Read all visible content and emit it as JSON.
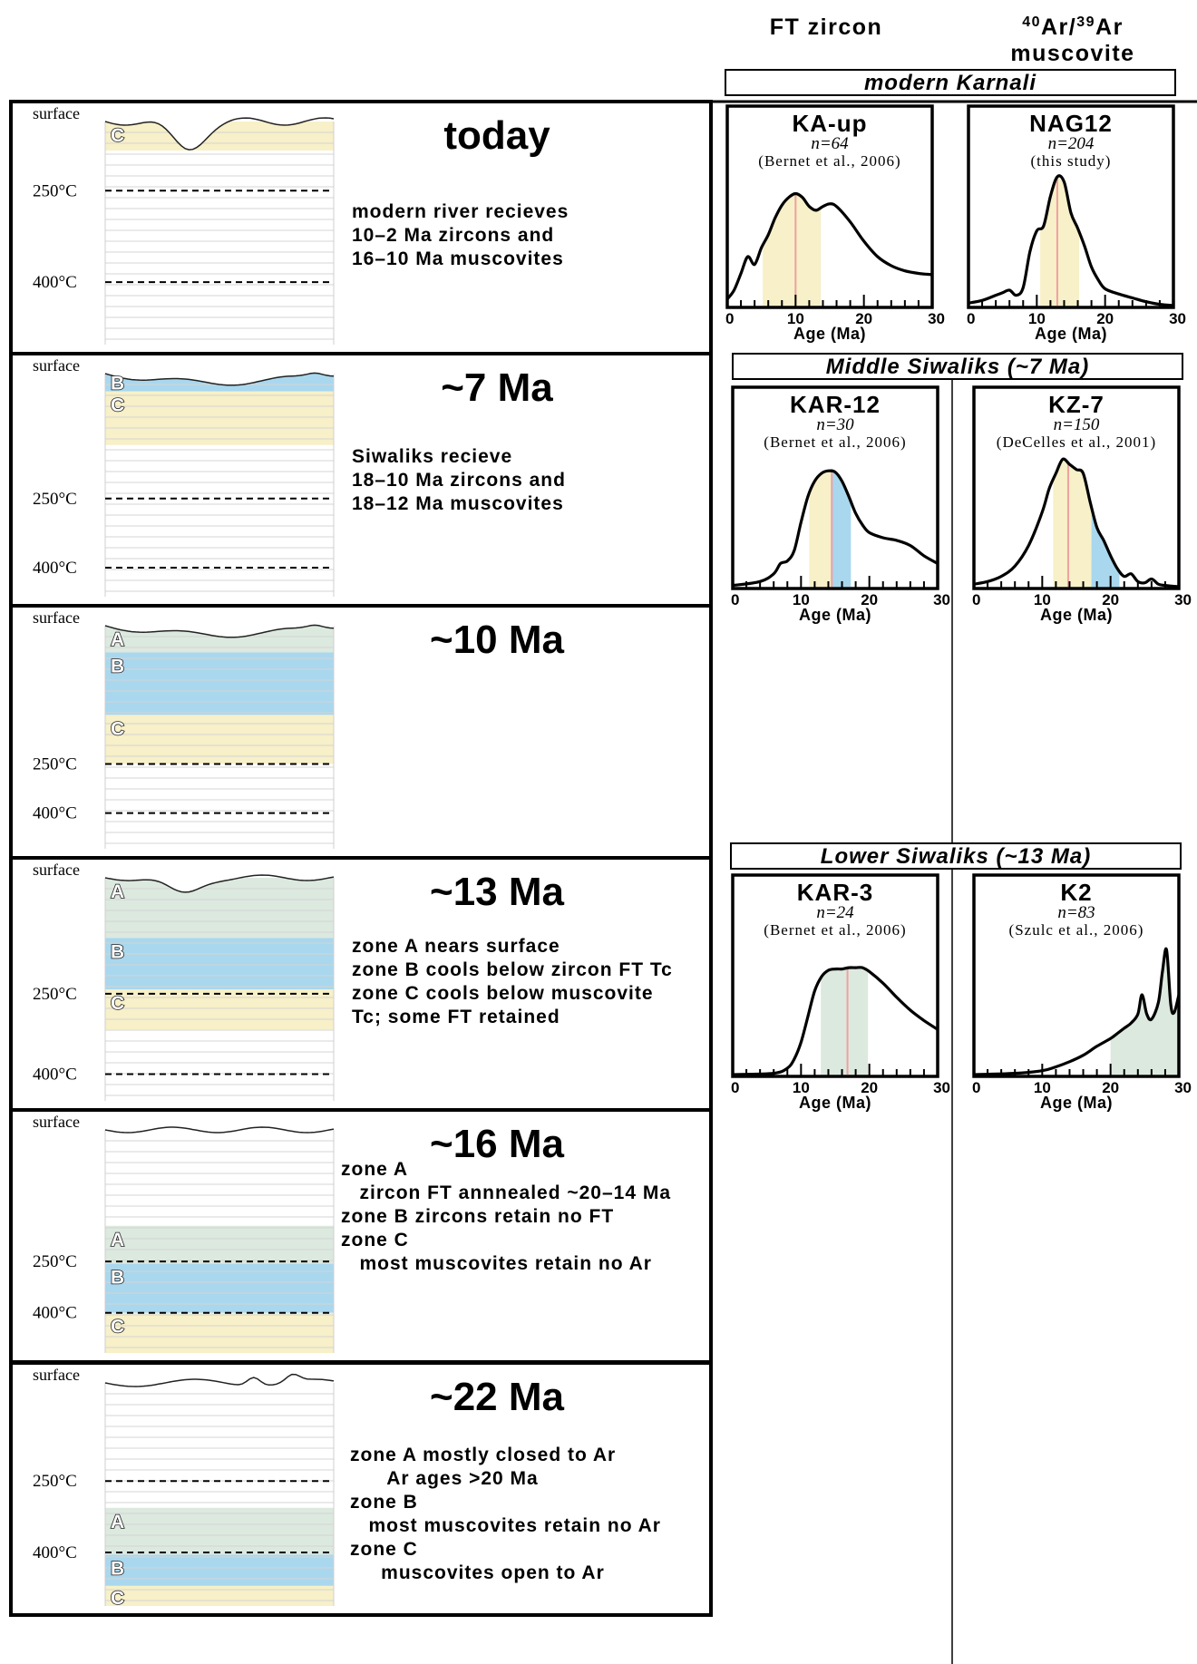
{
  "header": {
    "col1_title": "FT zircon",
    "col2_title_line1_sup1": "40",
    "col2_title_line1_mid": "Ar/",
    "col2_title_line1_sup2": "39",
    "col2_title_line1_end": "Ar",
    "col2_title_line2": "muscovite"
  },
  "colors": {
    "zone_A": "#dce9df",
    "zone_B": "#a9d7ee",
    "zone_C": "#f7f0c8",
    "median_line": "#f0a0a0",
    "grid_line": "#d4d4d4"
  },
  "common": {
    "surface_label": "surface",
    "temp_250": "250°C",
    "temp_400": "400°C",
    "zone_A_label": "A",
    "zone_B_label": "B",
    "zone_C_label": "C",
    "axis_label": "Age (Ma)",
    "axis_ticks": [
      "0",
      "10",
      "20",
      "30"
    ]
  },
  "panels": [
    {
      "title": "today",
      "notes": [
        "modern river recieves",
        "10–2 Ma zircons and",
        "16–10 Ma muscovites"
      ],
      "zones": [
        {
          "zone": "C",
          "top": 0,
          "bottom": 0.13
        }
      ],
      "temp_250": 0.31,
      "temp_400": 0.72,
      "surface_style": "valley"
    },
    {
      "title": "~7 Ma",
      "notes": [
        "Siwaliks recieve",
        "18–10 Ma zircons and",
        "18–12 Ma muscovites"
      ],
      "zones": [
        {
          "zone": "B",
          "top": 0,
          "bottom": 0.08
        },
        {
          "zone": "C",
          "top": 0.08,
          "bottom": 0.32
        }
      ],
      "temp_250": 0.56,
      "temp_400": 0.87,
      "surface_style": "gentle"
    },
    {
      "title": "~10 Ma",
      "notes": [],
      "zones": [
        {
          "zone": "A",
          "top": 0,
          "bottom": 0.12
        },
        {
          "zone": "B",
          "top": 0.12,
          "bottom": 0.4
        },
        {
          "zone": "C",
          "top": 0.4,
          "bottom": 0.62
        }
      ],
      "temp_250": 0.62,
      "temp_400": 0.84,
      "surface_style": "gentle"
    },
    {
      "title": "~13 Ma",
      "notes": [
        "zone A nears surface",
        "zone B cools below zircon FT Tc",
        "zone C cools below muscovite",
        "Tc; some FT retained"
      ],
      "zones": [
        {
          "zone": "A",
          "top": 0,
          "bottom": 0.27
        },
        {
          "zone": "B",
          "top": 0.27,
          "bottom": 0.5
        },
        {
          "zone": "C",
          "top": 0.5,
          "bottom": 0.68
        }
      ],
      "temp_250": 0.52,
      "temp_400": 0.88,
      "surface_style": "valley-small"
    },
    {
      "title": "~16 Ma",
      "notes": [
        "zone A",
        "   zircon FT annnealed ~20–14 Ma",
        "zone B zircons retain no FT",
        "zone C",
        "   most muscovites retain no Ar"
      ],
      "zones": [
        {
          "zone": "A",
          "top": 0.43,
          "bottom": 0.6
        },
        {
          "zone": "B",
          "top": 0.6,
          "bottom": 0.82
        },
        {
          "zone": "C",
          "top": 0.82,
          "bottom": 1.0
        }
      ],
      "temp_250": 0.59,
      "temp_400": 0.82,
      "surface_style": "flat"
    },
    {
      "title": "~22 Ma",
      "notes": [
        "zone A mostly closed to Ar",
        "      Ar ages >20 Ma",
        "zone B",
        "   most muscovites retain no Ar",
        "zone C",
        "     muscovites open to Ar"
      ],
      "zones": [
        {
          "zone": "A",
          "top": 0.56,
          "bottom": 0.77
        },
        {
          "zone": "B",
          "top": 0.77,
          "bottom": 0.91
        },
        {
          "zone": "C",
          "top": 0.91,
          "bottom": 1.0
        }
      ],
      "temp_250": 0.44,
      "temp_400": 0.76,
      "surface_style": "bumps"
    }
  ],
  "groups": [
    {
      "label": "modern Karnali"
    },
    {
      "label": "Middle Siwaliks (~7 Ma)"
    },
    {
      "label": "Lower Siwaliks (~13 Ma)"
    }
  ],
  "chart_data": [
    {
      "type": "line",
      "name": "KA-up",
      "n": "n=64",
      "ref": "(Bernet et al., 2006)",
      "xlim": [
        0,
        30
      ],
      "xlabel": "Age (Ma)",
      "x": [
        0,
        1,
        2,
        3,
        4,
        5,
        6,
        7,
        8,
        9,
        10,
        11,
        12,
        13,
        14,
        15,
        16,
        18,
        20,
        22,
        24,
        26,
        28,
        30
      ],
      "y": [
        0.05,
        0.12,
        0.25,
        0.38,
        0.32,
        0.45,
        0.55,
        0.68,
        0.78,
        0.84,
        0.87,
        0.84,
        0.77,
        0.74,
        0.77,
        0.79,
        0.77,
        0.65,
        0.5,
        0.38,
        0.31,
        0.27,
        0.25,
        0.24
      ],
      "shade": {
        "from": 5.2,
        "to": 13.7,
        "zone": "C"
      },
      "median": 10
    },
    {
      "type": "line",
      "name": "NAG12",
      "n": "n=204",
      "ref": "(this study)",
      "xlim": [
        0,
        30
      ],
      "xlabel": "Age (Ma)",
      "x": [
        0,
        2,
        4,
        5,
        6,
        7,
        8,
        9,
        10,
        11,
        12,
        13,
        14,
        15,
        16,
        17,
        18,
        19,
        20,
        22,
        24,
        26,
        28,
        30
      ],
      "y": [
        0.02,
        0.04,
        0.08,
        0.1,
        0.12,
        0.08,
        0.14,
        0.42,
        0.58,
        0.62,
        0.85,
        1.0,
        0.96,
        0.72,
        0.6,
        0.46,
        0.3,
        0.2,
        0.13,
        0.09,
        0.06,
        0.03,
        0.01,
        0.0
      ],
      "shade": {
        "from": 10.5,
        "to": 16.2,
        "zone": "C"
      },
      "median": 13
    },
    {
      "type": "line",
      "name": "KAR-12",
      "n": "n=30",
      "ref": "(Bernet et al., 2006)",
      "xlim": [
        0,
        30
      ],
      "xlabel": "Age (Ma)",
      "x": [
        0,
        4,
        6,
        7,
        8,
        9,
        10,
        11,
        12,
        13,
        14,
        15,
        16,
        17,
        18,
        19,
        20,
        22,
        24,
        26,
        28,
        30
      ],
      "y": [
        0.01,
        0.04,
        0.1,
        0.18,
        0.2,
        0.28,
        0.5,
        0.7,
        0.82,
        0.88,
        0.9,
        0.89,
        0.82,
        0.7,
        0.57,
        0.48,
        0.42,
        0.38,
        0.36,
        0.32,
        0.24,
        0.18
      ],
      "shade": [
        {
          "from": 11.2,
          "to": 14.5,
          "zone": "C"
        },
        {
          "from": 14.5,
          "to": 17.3,
          "zone": "B"
        }
      ],
      "median": 14.5
    },
    {
      "type": "line",
      "name": "KZ-7",
      "n": "n=150",
      "ref": "(DeCelles et al., 2001)",
      "xlim": [
        0,
        30
      ],
      "xlabel": "Age (Ma)",
      "x": [
        0,
        2,
        4,
        6,
        8,
        10,
        11,
        12,
        13,
        14,
        15,
        16,
        17,
        18,
        19,
        20,
        21,
        22,
        23,
        24,
        25,
        26,
        27,
        28,
        30
      ],
      "y": [
        0.02,
        0.04,
        0.08,
        0.16,
        0.32,
        0.58,
        0.76,
        0.88,
        0.99,
        0.95,
        0.91,
        0.88,
        0.66,
        0.46,
        0.36,
        0.24,
        0.14,
        0.08,
        0.1,
        0.04,
        0.03,
        0.06,
        0.02,
        0.01,
        0.0
      ],
      "shade": [
        {
          "from": 11.6,
          "to": 17.2,
          "zone": "C"
        },
        {
          "from": 17.2,
          "to": 21.3,
          "zone": "B"
        }
      ],
      "median": 13.8
    },
    {
      "type": "line",
      "name": "KAR-3",
      "n": "n=24",
      "ref": "(Bernet et al., 2006)",
      "xlim": [
        0,
        30
      ],
      "xlabel": "Age (Ma)",
      "x": [
        0,
        6,
        8,
        9,
        10,
        11,
        12,
        13,
        14,
        15,
        16,
        17,
        18,
        19,
        20,
        22,
        24,
        26,
        28,
        30
      ],
      "y": [
        0.0,
        0.01,
        0.05,
        0.12,
        0.25,
        0.45,
        0.65,
        0.76,
        0.81,
        0.82,
        0.82,
        0.83,
        0.83,
        0.83,
        0.8,
        0.71,
        0.6,
        0.5,
        0.42,
        0.35
      ],
      "shade": {
        "from": 12.9,
        "to": 19.8,
        "zone": "A"
      },
      "median": 16.8
    },
    {
      "type": "line",
      "name": "K2",
      "n": "n=83",
      "ref": "(Szulc et al., 2006)",
      "xlim": [
        0,
        30
      ],
      "xlabel": "Age (Ma)",
      "x": [
        0,
        6,
        10,
        12,
        14,
        16,
        18,
        20,
        21,
        22,
        23,
        24,
        24.6,
        25.3,
        26,
        27,
        27.6,
        28.2,
        28.8,
        29.3,
        30
      ],
      "y": [
        0.0,
        0.01,
        0.03,
        0.06,
        0.1,
        0.15,
        0.22,
        0.28,
        0.32,
        0.36,
        0.4,
        0.47,
        0.62,
        0.47,
        0.43,
        0.56,
        0.8,
        0.97,
        0.55,
        0.48,
        0.62
      ],
      "shade": {
        "from": 20,
        "to": 30,
        "zone": "A"
      },
      "median": null
    }
  ]
}
